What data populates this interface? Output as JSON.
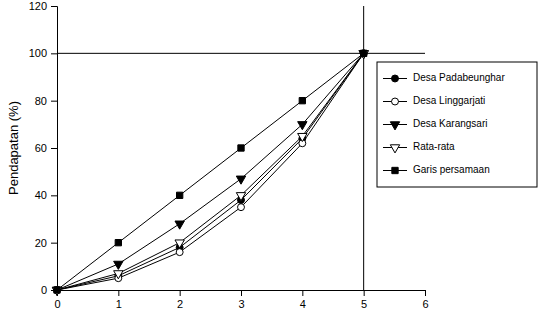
{
  "chart_data": {
    "type": "line",
    "y_label": "Pendapatan (%)",
    "x": [
      0,
      1,
      2,
      3,
      4,
      5
    ],
    "series": [
      {
        "name": "Desa Padabeunghar",
        "color": "#000000",
        "marker": "circle",
        "values": [
          0,
          6,
          18,
          38,
          64,
          100
        ]
      },
      {
        "name": "Desa Linggarjati",
        "color": "#000000",
        "marker": "circle-open",
        "values": [
          0,
          5,
          16,
          35,
          62,
          100
        ]
      },
      {
        "name": "Desa Karangsari",
        "color": "#000000",
        "marker": "triangle-down",
        "values": [
          0,
          11,
          28,
          47,
          70,
          100
        ]
      },
      {
        "name": "Rata-rata",
        "color": "#000000",
        "marker": "triangle-down-open",
        "values": [
          0,
          7,
          20,
          40,
          65,
          100
        ]
      },
      {
        "name": "Garis persamaan",
        "color": "#000000",
        "marker": "square",
        "values": [
          0,
          20,
          40,
          60,
          80,
          100
        ]
      }
    ],
    "hlines": [
      100
    ],
    "vlines": [
      5
    ],
    "xlim": [
      0,
      6
    ],
    "xticks": [
      0,
      1,
      2,
      3,
      4,
      5,
      6
    ],
    "ylim": [
      0,
      120
    ],
    "yticks": [
      0,
      20,
      40,
      60,
      80,
      100,
      120
    ],
    "grid": false,
    "legend": "right"
  }
}
